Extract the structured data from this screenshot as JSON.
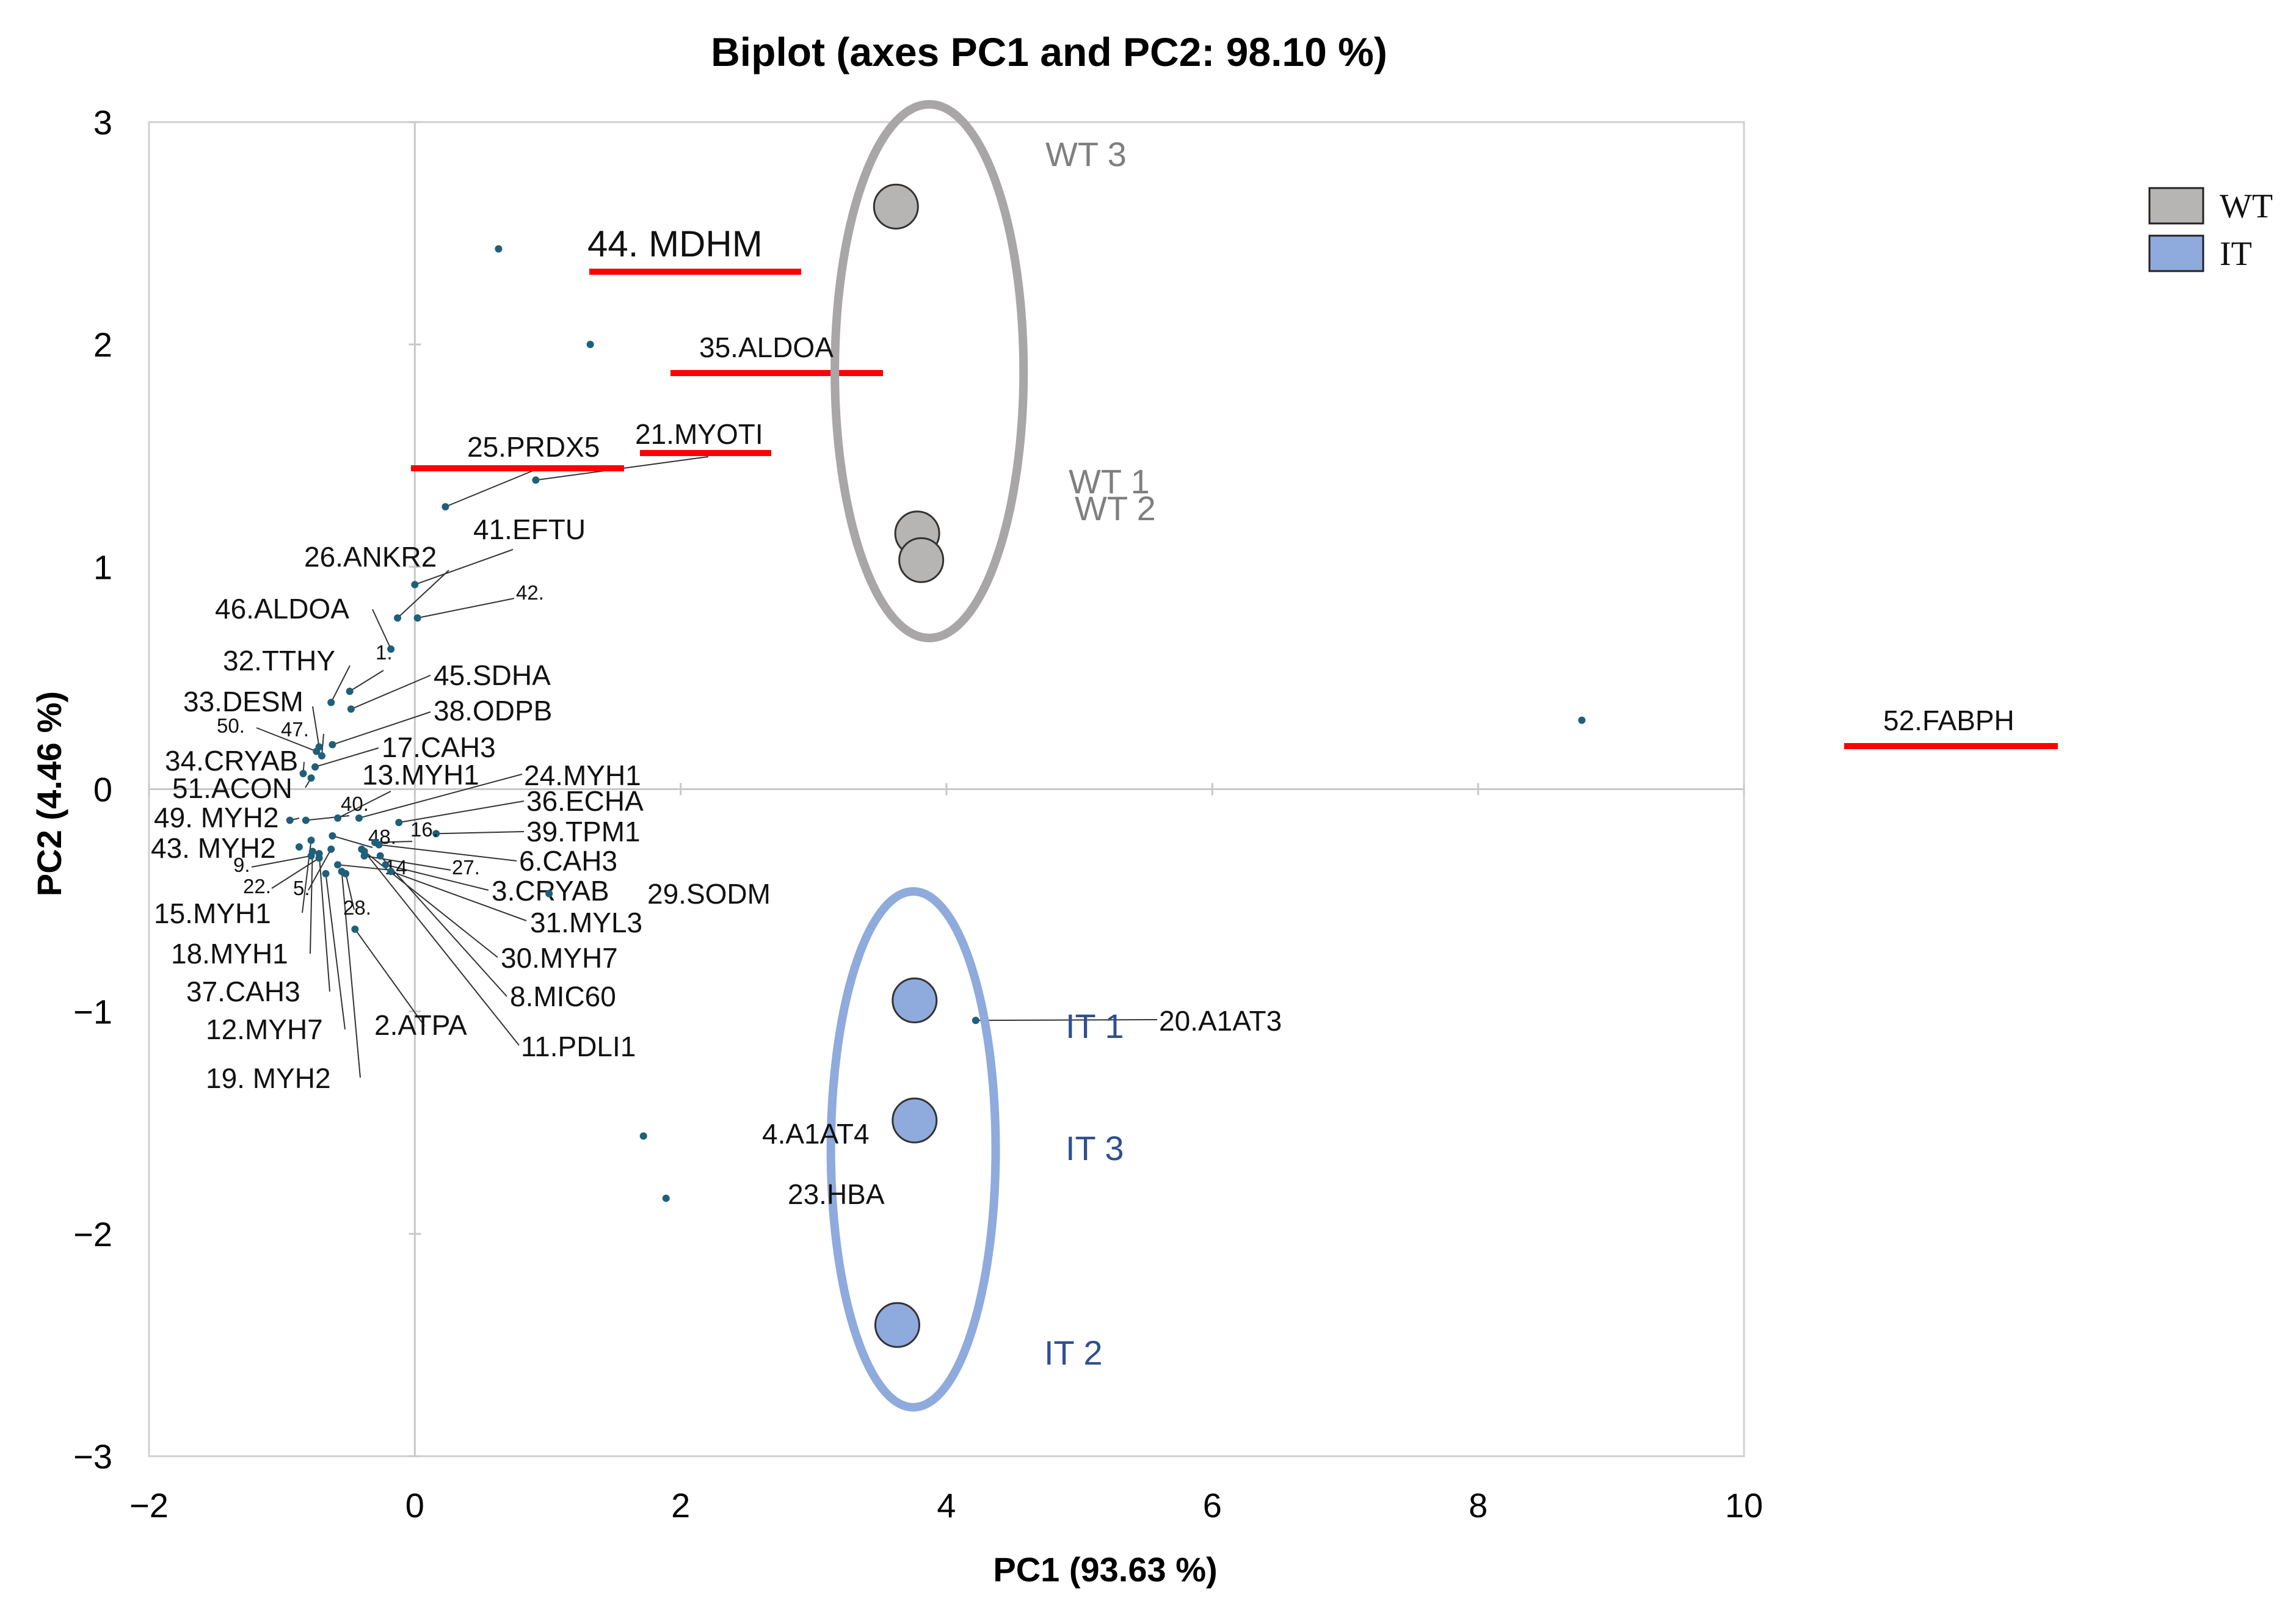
{
  "chart_data": {
    "type": "scatter",
    "title": "Biplot (axes PC1 and PC2: 98.10 %)",
    "xlabel": "PC1 (93.63 %)",
    "ylabel": "PC2 (4.46 %)",
    "xlim": [
      -2,
      10
    ],
    "ylim": [
      -3,
      3
    ],
    "xticks": [
      -2,
      0,
      2,
      4,
      6,
      8,
      10
    ],
    "yticks": [
      -3,
      -2,
      -1,
      0,
      1,
      2,
      3
    ],
    "xtick_labels": [
      "−2",
      "0",
      "2",
      "4",
      "6",
      "8",
      "10"
    ],
    "ytick_labels": [
      "−3",
      "−2",
      "−1",
      "0",
      "1",
      "2",
      "3"
    ],
    "colors": {
      "wt": "#b7b4b4",
      "it": "#8faadc",
      "wt_ring": "#a8a6a6",
      "it_ring": "#8faadc",
      "variable": "#1f5f7a",
      "highlight": "#ff0000",
      "it_text": "#2f4f8f",
      "wt_text": "#7f7f7f"
    },
    "legend": {
      "position": "right",
      "entries": [
        {
          "name": "WT",
          "color": "#b7b4b4"
        },
        {
          "name": "IT",
          "color": "#8faadc"
        }
      ]
    },
    "observations": [
      {
        "label": "WT 3",
        "group": "WT",
        "x": 3.62,
        "y": 2.62
      },
      {
        "label": "WT 1",
        "group": "WT",
        "x": 3.78,
        "y": 1.15
      },
      {
        "label": "WT 2",
        "group": "WT",
        "x": 3.81,
        "y": 1.03
      },
      {
        "label": "IT 1",
        "group": "IT",
        "x": 3.76,
        "y": -0.95
      },
      {
        "label": "IT 3",
        "group": "IT",
        "x": 3.76,
        "y": -1.49
      },
      {
        "label": "IT 2",
        "group": "IT",
        "x": 3.63,
        "y": -2.41
      }
    ],
    "groups": [
      {
        "name": "WT",
        "center": [
          3.87,
          1.88
        ],
        "radius": [
          0.71,
          1.2
        ]
      },
      {
        "name": "IT",
        "center": [
          3.75,
          -1.62
        ],
        "radius": [
          0.62,
          1.16
        ]
      }
    ],
    "variables": [
      {
        "label": "44. MDHM",
        "x": 0.63,
        "y": 2.43,
        "highlight": true
      },
      {
        "label": "35.ALDOA",
        "x": 1.32,
        "y": 2.0,
        "highlight": true
      },
      {
        "label": "21.MYOTI",
        "x": 0.91,
        "y": 1.39,
        "highlight": true
      },
      {
        "label": "25.PRDX5",
        "x": 0.23,
        "y": 1.27,
        "highlight": true
      },
      {
        "label": "52.FABPH",
        "x": 8.78,
        "y": 0.31,
        "highlight": true
      },
      {
        "label": "41.EFTU",
        "x": 0.0,
        "y": 0.92
      },
      {
        "label": "42.",
        "x": 0.02,
        "y": 0.77
      },
      {
        "label": "26.ANKR2",
        "x": -0.13,
        "y": 0.77
      },
      {
        "label": "46.ALDOA",
        "x": -0.18,
        "y": 0.63
      },
      {
        "label": "1.",
        "x": -0.49,
        "y": 0.44
      },
      {
        "label": "45.SDHA",
        "x": -0.48,
        "y": 0.36
      },
      {
        "label": "32.TTHY",
        "x": -0.63,
        "y": 0.39
      },
      {
        "label": "38.ODPB",
        "x": -0.62,
        "y": 0.2
      },
      {
        "label": "33.DESM",
        "x": -0.72,
        "y": 0.19
      },
      {
        "label": "50.",
        "x": -0.74,
        "y": 0.17
      },
      {
        "label": "47.",
        "x": -0.7,
        "y": 0.15
      },
      {
        "label": "17.CAH3",
        "x": -0.75,
        "y": 0.1
      },
      {
        "label": "34.CRYAB",
        "x": -0.84,
        "y": 0.07
      },
      {
        "label": "51.ACON",
        "x": -0.78,
        "y": 0.05
      },
      {
        "label": "13.MYH1",
        "x": -0.58,
        "y": -0.13
      },
      {
        "label": "24.MYH1",
        "x": -0.42,
        "y": -0.13
      },
      {
        "label": "36.ECHA",
        "x": -0.12,
        "y": -0.15
      },
      {
        "label": "49. MYH2",
        "x": -0.94,
        "y": -0.14
      },
      {
        "label": "40.",
        "x": -0.82,
        "y": -0.14
      },
      {
        "label": "39.TPM1",
        "x": 0.16,
        "y": -0.2
      },
      {
        "label": "43. MYH2",
        "x": -0.87,
        "y": -0.26
      },
      {
        "label": "48.",
        "x": -0.62,
        "y": -0.21
      },
      {
        "label": "16.",
        "x": -0.3,
        "y": -0.24
      },
      {
        "label": "6.CAH3",
        "x": -0.27,
        "y": -0.25
      },
      {
        "label": "9.",
        "x": -0.78,
        "y": -0.3
      },
      {
        "label": "27.",
        "x": -0.38,
        "y": -0.3
      },
      {
        "label": "22.",
        "x": -0.72,
        "y": -0.31
      },
      {
        "label": "5.",
        "x": -0.63,
        "y": -0.27
      },
      {
        "label": "14",
        "x": -0.58,
        "y": -0.34
      },
      {
        "label": "3.CRYAB",
        "x": -0.22,
        "y": -0.34
      },
      {
        "label": "29.SODM",
        "x": 1.01,
        "y": -0.47
      },
      {
        "label": "15.MYH1",
        "x": -0.78,
        "y": -0.23
      },
      {
        "label": "31.MYL3",
        "x": -0.18,
        "y": -0.37
      },
      {
        "label": "28.",
        "x": -0.52,
        "y": -0.38
      },
      {
        "label": "18.MYH1",
        "x": -0.77,
        "y": -0.28
      },
      {
        "label": "30.MYH7",
        "x": -0.4,
        "y": -0.27
      },
      {
        "label": "37.CAH3",
        "x": -0.72,
        "y": -0.29
      },
      {
        "label": "8.MIC60",
        "x": -0.26,
        "y": -0.3
      },
      {
        "label": "12.MYH7",
        "x": -0.67,
        "y": -0.38
      },
      {
        "label": "2.ATPA",
        "x": -0.45,
        "y": -0.63
      },
      {
        "label": "11.PDLI1",
        "x": -0.38,
        "y": -0.28
      },
      {
        "label": "19. MYH2",
        "x": -0.55,
        "y": -0.37
      },
      {
        "label": "20.A1AT3",
        "x": 4.22,
        "y": -1.04
      },
      {
        "label": "4.A1AT4",
        "x": 1.72,
        "y": -1.56
      },
      {
        "label": "23.HBA",
        "x": 1.89,
        "y": -1.84
      }
    ]
  }
}
